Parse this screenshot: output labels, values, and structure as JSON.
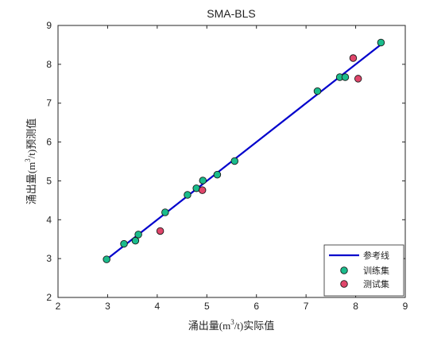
{
  "chart_data": {
    "type": "scatter",
    "title": "SMA-BLS",
    "xlabel": {
      "pre": "涌出量(m",
      "sup": "3",
      "post": "/t)实际值"
    },
    "ylabel": {
      "pre": "涌出量(m",
      "sup": "3",
      "post": "/t)预测值"
    },
    "xlim": [
      2,
      9
    ],
    "ylim": [
      2,
      9
    ],
    "xticks": [
      2,
      3,
      4,
      5,
      6,
      7,
      8,
      9
    ],
    "yticks": [
      2,
      3,
      4,
      5,
      6,
      7,
      8,
      9
    ],
    "grid": false,
    "legend_position": "bottom-right",
    "reference_line": {
      "name": "参考线",
      "color": "#0000cc",
      "x": [
        2.98,
        8.52
      ],
      "y": [
        2.98,
        8.52
      ]
    },
    "series": [
      {
        "name": "训练集",
        "color": "#1abc8c",
        "points": [
          [
            2.98,
            2.98
          ],
          [
            3.33,
            3.38
          ],
          [
            3.56,
            3.46
          ],
          [
            3.62,
            3.62
          ],
          [
            4.16,
            4.19
          ],
          [
            4.61,
            4.64
          ],
          [
            4.79,
            4.81
          ],
          [
            4.92,
            5.01
          ],
          [
            5.21,
            5.16
          ],
          [
            5.56,
            5.51
          ],
          [
            7.23,
            7.31
          ],
          [
            7.68,
            7.67
          ],
          [
            7.79,
            7.67
          ],
          [
            8.51,
            8.56
          ]
        ]
      },
      {
        "name": "测试集",
        "color": "#e0456a",
        "points": [
          [
            4.06,
            3.71
          ],
          [
            4.91,
            4.76
          ],
          [
            7.95,
            8.16
          ],
          [
            8.05,
            7.63
          ]
        ]
      }
    ]
  }
}
